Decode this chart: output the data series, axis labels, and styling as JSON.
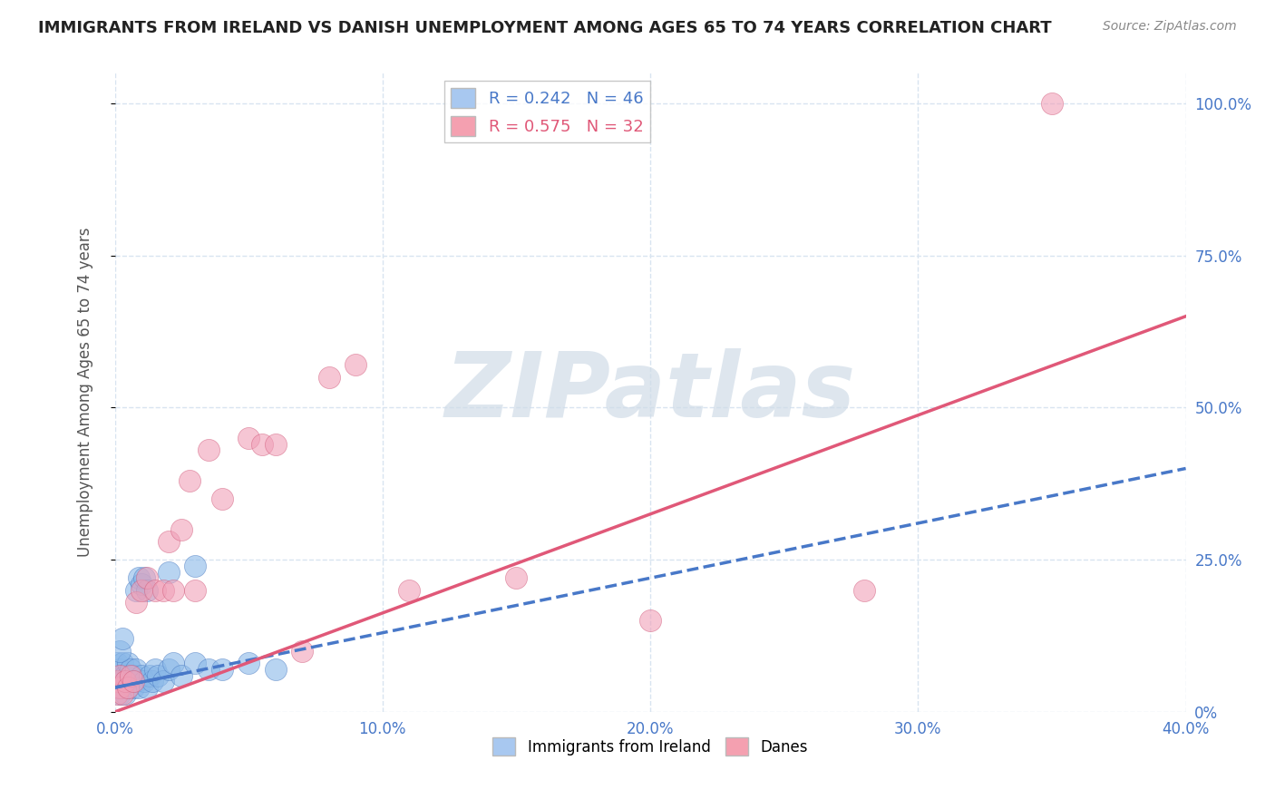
{
  "title": "IMMIGRANTS FROM IRELAND VS DANISH UNEMPLOYMENT AMONG AGES 65 TO 74 YEARS CORRELATION CHART",
  "source": "Source: ZipAtlas.com",
  "xlabel_ticks": [
    "0.0%",
    "10.0%",
    "20.0%",
    "30.0%",
    "40.0%"
  ],
  "xlabel_vals": [
    0.0,
    0.1,
    0.2,
    0.3,
    0.4
  ],
  "ylabel_ticks": [
    "100.0%",
    "75.0%",
    "50.0%",
    "25.0%",
    "0%"
  ],
  "ylabel_vals": [
    1.0,
    0.75,
    0.5,
    0.25,
    0.0
  ],
  "ylabel_label": "Unemployment Among Ages 65 to 74 years",
  "xlim": [
    0.0,
    0.4
  ],
  "ylim": [
    0.0,
    1.05
  ],
  "legend_entries": [
    {
      "label": "R = 0.242   N = 46",
      "color": "#a8c8f0"
    },
    {
      "label": "R = 0.575   N = 32",
      "color": "#f4a0b0"
    }
  ],
  "legend_bottom": [
    {
      "label": "Immigrants from Ireland",
      "color": "#a8c8f0"
    },
    {
      "label": "Danes",
      "color": "#f4a0b0"
    }
  ],
  "blue_scatter_x": [
    0.001,
    0.001,
    0.001,
    0.002,
    0.002,
    0.002,
    0.003,
    0.003,
    0.003,
    0.004,
    0.004,
    0.005,
    0.005,
    0.005,
    0.006,
    0.006,
    0.007,
    0.007,
    0.008,
    0.008,
    0.009,
    0.01,
    0.011,
    0.012,
    0.013,
    0.014,
    0.015,
    0.016,
    0.018,
    0.02,
    0.022,
    0.025,
    0.03,
    0.035,
    0.04,
    0.05,
    0.06,
    0.008,
    0.009,
    0.01,
    0.011,
    0.012,
    0.02,
    0.03,
    0.002,
    0.003
  ],
  "blue_scatter_y": [
    0.04,
    0.05,
    0.08,
    0.03,
    0.05,
    0.07,
    0.04,
    0.06,
    0.08,
    0.03,
    0.06,
    0.04,
    0.06,
    0.08,
    0.05,
    0.07,
    0.04,
    0.06,
    0.05,
    0.07,
    0.04,
    0.06,
    0.05,
    0.04,
    0.06,
    0.05,
    0.07,
    0.06,
    0.05,
    0.07,
    0.08,
    0.06,
    0.08,
    0.07,
    0.07,
    0.08,
    0.07,
    0.2,
    0.22,
    0.21,
    0.22,
    0.2,
    0.23,
    0.24,
    0.1,
    0.12
  ],
  "pink_scatter_x": [
    0.001,
    0.001,
    0.002,
    0.002,
    0.003,
    0.004,
    0.005,
    0.006,
    0.007,
    0.008,
    0.01,
    0.012,
    0.015,
    0.018,
    0.02,
    0.022,
    0.025,
    0.028,
    0.03,
    0.035,
    0.04,
    0.05,
    0.055,
    0.06,
    0.07,
    0.08,
    0.09,
    0.11,
    0.15,
    0.2,
    0.28,
    0.35
  ],
  "pink_scatter_y": [
    0.03,
    0.05,
    0.04,
    0.06,
    0.03,
    0.05,
    0.04,
    0.06,
    0.05,
    0.18,
    0.2,
    0.22,
    0.2,
    0.2,
    0.28,
    0.2,
    0.3,
    0.38,
    0.2,
    0.43,
    0.35,
    0.45,
    0.44,
    0.44,
    0.1,
    0.55,
    0.57,
    0.2,
    0.22,
    0.15,
    0.2,
    1.0
  ],
  "blue_line_x": [
    0.0,
    0.4
  ],
  "blue_line_y": [
    0.04,
    0.4
  ],
  "pink_line_x": [
    0.0,
    0.4
  ],
  "pink_line_y": [
    0.0,
    0.65
  ],
  "watermark": "ZIPatlas",
  "watermark_color": "#d0dce8",
  "background_color": "#ffffff",
  "grid_color": "#d8e4f0",
  "title_fontsize": 13,
  "axis_label_fontsize": 12,
  "tick_fontsize": 12,
  "scatter_size": 300,
  "blue_color": "#8ab8e8",
  "blue_edge_color": "#4878c0",
  "pink_color": "#f0a0b8",
  "pink_edge_color": "#d05878",
  "blue_line_color": "#4878c8",
  "pink_line_color": "#e05878"
}
